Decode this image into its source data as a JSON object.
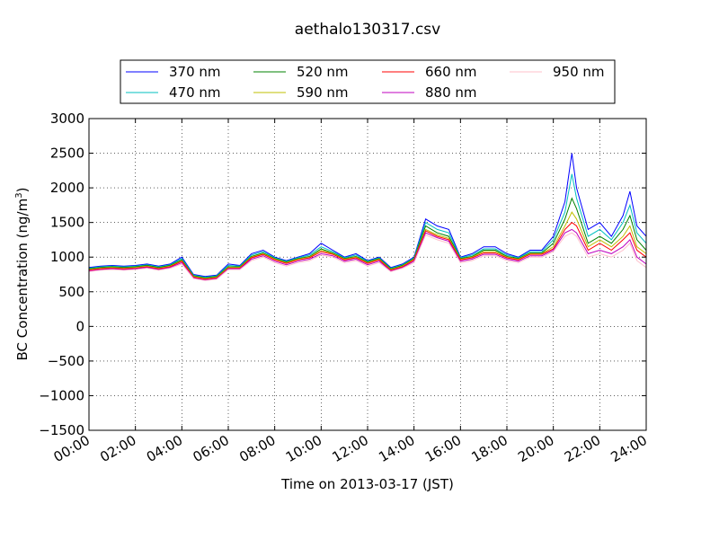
{
  "chart_data": {
    "type": "line",
    "title": "aethalo130317.csv",
    "xlabel": "Time on 2013-03-17 (JST)",
    "ylabel_main": "BC Concentration (ng/m",
    "ylabel_sup": "3",
    "ylabel_end": ")",
    "xlim": [
      0,
      24
    ],
    "ylim": [
      -1500,
      3000
    ],
    "xticks": [
      0,
      2,
      4,
      6,
      8,
      10,
      12,
      14,
      16,
      18,
      20,
      22,
      24
    ],
    "xtick_labels": [
      "00:00",
      "02:00",
      "04:00",
      "06:00",
      "08:00",
      "10:00",
      "12:00",
      "14:00",
      "16:00",
      "18:00",
      "20:00",
      "22:00",
      "24:00"
    ],
    "yticks": [
      -1500,
      -1000,
      -500,
      0,
      500,
      1000,
      1500,
      2000,
      2500,
      3000
    ],
    "ytick_labels": [
      "−1500",
      "−1000",
      "−500",
      "0",
      "500",
      "1000",
      "1500",
      "2000",
      "2500",
      "3000"
    ],
    "grid": true,
    "legend_position": "top",
    "series": [
      {
        "name": "370 nm",
        "color": "#0000ff",
        "x": [
          0,
          0.5,
          1,
          1.5,
          2,
          2.5,
          3,
          3.5,
          4,
          4.5,
          5,
          5.5,
          6,
          6.5,
          7,
          7.5,
          8,
          8.5,
          9,
          9.5,
          10,
          10.5,
          11,
          11.5,
          12,
          12.5,
          13,
          13.5,
          14,
          14.5,
          15,
          15.5,
          16,
          16.5,
          17,
          17.5,
          18,
          18.5,
          19,
          19.5,
          20,
          20.5,
          20.8,
          21,
          21.5,
          22,
          22.5,
          23,
          23.3,
          23.6,
          24
        ],
        "y": [
          850,
          870,
          880,
          870,
          880,
          900,
          870,
          900,
          1000,
          750,
          720,
          740,
          900,
          880,
          1050,
          1100,
          1000,
          950,
          1000,
          1050,
          1200,
          1100,
          1000,
          1050,
          950,
          1000,
          850,
          900,
          1000,
          1550,
          1450,
          1400,
          1000,
          1050,
          1150,
          1150,
          1050,
          1000,
          1100,
          1100,
          1300,
          1800,
          2500,
          2000,
          1400,
          1500,
          1300,
          1600,
          1950,
          1450,
          1300
        ]
      },
      {
        "name": "470 nm",
        "color": "#00bfbf",
        "x": [
          0,
          0.5,
          1,
          1.5,
          2,
          2.5,
          3,
          3.5,
          4,
          4.5,
          5,
          5.5,
          6,
          6.5,
          7,
          7.5,
          8,
          8.5,
          9,
          9.5,
          10,
          10.5,
          11,
          11.5,
          12,
          12.5,
          13,
          13.5,
          14,
          14.5,
          15,
          15.5,
          16,
          16.5,
          17,
          17.5,
          18,
          18.5,
          19,
          19.5,
          20,
          20.5,
          20.8,
          21,
          21.5,
          22,
          22.5,
          23,
          23.3,
          23.6,
          24
        ],
        "y": [
          840,
          860,
          870,
          860,
          870,
          890,
          860,
          890,
          980,
          740,
          710,
          730,
          880,
          870,
          1030,
          1080,
          990,
          940,
          990,
          1030,
          1150,
          1080,
          990,
          1030,
          940,
          990,
          840,
          890,
          990,
          1500,
          1400,
          1350,
          990,
          1030,
          1120,
          1120,
          1030,
          990,
          1080,
          1080,
          1250,
          1650,
          2200,
          1850,
          1300,
          1400,
          1250,
          1500,
          1750,
          1350,
          1200
        ]
      },
      {
        "name": "520 nm",
        "color": "#008000",
        "x": [
          0,
          0.5,
          1,
          1.5,
          2,
          2.5,
          3,
          3.5,
          4,
          4.5,
          5,
          5.5,
          6,
          6.5,
          7,
          7.5,
          8,
          8.5,
          9,
          9.5,
          10,
          10.5,
          11,
          11.5,
          12,
          12.5,
          13,
          13.5,
          14,
          14.5,
          15,
          15.5,
          16,
          16.5,
          17,
          17.5,
          18,
          18.5,
          19,
          19.5,
          20,
          20.5,
          20.8,
          21,
          21.5,
          22,
          22.5,
          23,
          23.3,
          23.6,
          24
        ],
        "y": [
          830,
          850,
          860,
          850,
          860,
          880,
          850,
          880,
          960,
          730,
          700,
          720,
          860,
          860,
          1010,
          1060,
          980,
          930,
          980,
          1010,
          1120,
          1060,
          980,
          1010,
          930,
          980,
          830,
          880,
          980,
          1450,
          1350,
          1300,
          980,
          1010,
          1100,
          1100,
          1010,
          980,
          1060,
          1060,
          1200,
          1550,
          1850,
          1700,
          1200,
          1300,
          1200,
          1400,
          1600,
          1250,
          1100
        ]
      },
      {
        "name": "590 nm",
        "color": "#bfbf00",
        "x": [
          0,
          0.5,
          1,
          1.5,
          2,
          2.5,
          3,
          3.5,
          4,
          4.5,
          5,
          5.5,
          6,
          6.5,
          7,
          7.5,
          8,
          8.5,
          9,
          9.5,
          10,
          10.5,
          11,
          11.5,
          12,
          12.5,
          13,
          13.5,
          14,
          14.5,
          15,
          15.5,
          16,
          16.5,
          17,
          17.5,
          18,
          18.5,
          19,
          19.5,
          20,
          20.5,
          20.8,
          21,
          21.5,
          22,
          22.5,
          23,
          23.3,
          23.6,
          24
        ],
        "y": [
          820,
          840,
          850,
          840,
          850,
          870,
          840,
          870,
          950,
          720,
          690,
          710,
          850,
          850,
          1000,
          1050,
          970,
          920,
          970,
          1000,
          1100,
          1050,
          970,
          1000,
          920,
          970,
          820,
          870,
          970,
          1400,
          1320,
          1270,
          970,
          1000,
          1080,
          1080,
          1000,
          970,
          1050,
          1050,
          1150,
          1450,
          1650,
          1550,
          1150,
          1250,
          1150,
          1300,
          1450,
          1150,
          1050
        ]
      },
      {
        "name": "660 nm",
        "color": "#ff0000",
        "x": [
          0,
          0.5,
          1,
          1.5,
          2,
          2.5,
          3,
          3.5,
          4,
          4.5,
          5,
          5.5,
          6,
          6.5,
          7,
          7.5,
          8,
          8.5,
          9,
          9.5,
          10,
          10.5,
          11,
          11.5,
          12,
          12.5,
          13,
          13.5,
          14,
          14.5,
          15,
          15.5,
          16,
          16.5,
          17,
          17.5,
          18,
          18.5,
          19,
          19.5,
          20,
          20.5,
          20.8,
          21,
          21.5,
          22,
          22.5,
          23,
          23.3,
          23.6,
          24
        ],
        "y": [
          810,
          830,
          840,
          830,
          840,
          860,
          830,
          860,
          940,
          710,
          680,
          700,
          840,
          840,
          990,
          1040,
          960,
          910,
          960,
          990,
          1080,
          1040,
          960,
          990,
          910,
          960,
          810,
          860,
          960,
          1380,
          1300,
          1250,
          960,
          990,
          1060,
          1060,
          990,
          960,
          1040,
          1040,
          1120,
          1400,
          1500,
          1450,
          1100,
          1200,
          1100,
          1250,
          1350,
          1100,
          1000
        ]
      },
      {
        "name": "880 nm",
        "color": "#bf00bf",
        "x": [
          0,
          0.5,
          1,
          1.5,
          2,
          2.5,
          3,
          3.5,
          4,
          4.5,
          5,
          5.5,
          6,
          6.5,
          7,
          7.5,
          8,
          8.5,
          9,
          9.5,
          10,
          10.5,
          11,
          11.5,
          12,
          12.5,
          13,
          13.5,
          14,
          14.5,
          15,
          15.5,
          16,
          16.5,
          17,
          17.5,
          18,
          18.5,
          19,
          19.5,
          20,
          20.5,
          20.8,
          21,
          21.5,
          22,
          22.5,
          23,
          23.3,
          23.6,
          24
        ],
        "y": [
          800,
          820,
          830,
          820,
          830,
          850,
          820,
          850,
          920,
          700,
          670,
          690,
          830,
          830,
          970,
          1020,
          940,
          890,
          940,
          970,
          1050,
          1020,
          940,
          970,
          890,
          940,
          800,
          850,
          940,
          1350,
          1280,
          1230,
          940,
          970,
          1040,
          1040,
          970,
          940,
          1020,
          1020,
          1100,
          1350,
          1400,
          1350,
          1050,
          1100,
          1050,
          1150,
          1250,
          1000,
          900
        ]
      },
      {
        "name": "950 nm",
        "color": "#ffc0cb",
        "x": [
          0,
          0.5,
          1,
          1.5,
          2,
          2.5,
          3,
          3.5,
          4,
          4.5,
          5,
          5.5,
          6,
          6.5,
          7,
          7.5,
          8,
          8.5,
          9,
          9.5,
          10,
          10.5,
          11,
          11.5,
          12,
          12.5,
          13,
          13.5,
          14,
          14.5,
          15,
          15.5,
          16,
          16.5,
          17,
          17.5,
          18,
          18.5,
          19,
          19.5,
          20,
          20.5,
          20.8,
          21,
          21.5,
          22,
          22.5,
          23,
          23.3,
          23.6,
          24
        ],
        "y": [
          790,
          810,
          820,
          810,
          820,
          840,
          810,
          840,
          900,
          690,
          660,
          680,
          820,
          820,
          950,
          1000,
          920,
          870,
          920,
          950,
          1030,
          1000,
          920,
          950,
          870,
          920,
          790,
          840,
          920,
          1320,
          1250,
          1200,
          920,
          950,
          1020,
          1020,
          950,
          920,
          1000,
          1000,
          1080,
          1300,
          1350,
          1300,
          1000,
          1050,
          1000,
          1100,
          1200,
          950,
          850
        ]
      }
    ]
  }
}
